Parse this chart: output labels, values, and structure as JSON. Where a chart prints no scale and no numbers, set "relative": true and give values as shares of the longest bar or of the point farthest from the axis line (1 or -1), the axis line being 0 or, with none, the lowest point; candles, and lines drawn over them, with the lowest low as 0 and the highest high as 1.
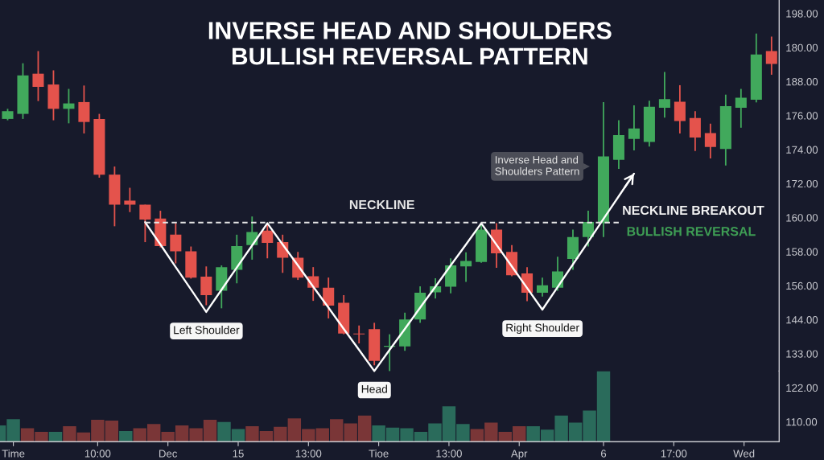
{
  "chart_data": [
    {
      "type": "candlestick",
      "title": "INVERSE HEAD AND SHOULDERS",
      "subtitle": "BULLISH REVERSAL PATTERN",
      "relative": true,
      "categories": [
        null,
        null,
        null,
        null,
        null,
        null,
        null,
        null,
        null,
        null,
        null,
        null,
        null,
        null,
        null,
        null,
        null,
        null,
        null,
        null,
        null,
        null,
        null,
        null,
        null,
        null,
        null,
        null,
        null,
        null,
        null,
        null,
        null,
        null,
        null,
        null,
        null,
        null,
        null,
        null,
        null,
        null,
        null,
        null,
        null,
        null,
        null,
        null,
        null,
        null,
        null
      ],
      "ohlc": [
        [
          0.747,
          0.777,
          0.743,
          0.77
        ],
        [
          0.762,
          0.912,
          0.747,
          0.876
        ],
        [
          0.881,
          0.948,
          0.8,
          0.842
        ],
        [
          0.849,
          0.891,
          0.743,
          0.777
        ],
        [
          0.777,
          0.836,
          0.734,
          0.793
        ],
        [
          0.797,
          0.846,
          0.704,
          0.738
        ],
        [
          0.747,
          0.762,
          0.573,
          0.582
        ],
        [
          0.582,
          0.606,
          0.429,
          0.493
        ],
        [
          0.505,
          0.543,
          0.471,
          0.493
        ],
        [
          0.493,
          0.493,
          0.382,
          0.449
        ],
        [
          0.452,
          0.475,
          0.366,
          0.37
        ],
        [
          0.404,
          0.438,
          0.319,
          0.355
        ],
        [
          0.355,
          0.369,
          0.274,
          0.277
        ],
        [
          0.28,
          0.31,
          0.195,
          0.225
        ],
        [
          0.238,
          0.313,
          0.186,
          0.308
        ],
        [
          0.3,
          0.404,
          0.26,
          0.37
        ],
        [
          0.373,
          0.458,
          0.33,
          0.412
        ],
        [
          0.416,
          0.438,
          0.334,
          0.38
        ],
        [
          0.382,
          0.404,
          0.291,
          0.336
        ],
        [
          0.336,
          0.353,
          0.27,
          0.277
        ],
        [
          0.281,
          0.308,
          0.208,
          0.247
        ],
        [
          0.247,
          0.277,
          0.156,
          0.194
        ],
        [
          0.202,
          0.225,
          0.109,
          0.111
        ],
        [
          0.111,
          0.135,
          0.082,
          0.109
        ],
        [
          0.124,
          0.143,
          0.017,
          0.03
        ],
        [
          0.072,
          0.109,
          0.0,
          0.075
        ],
        [
          0.073,
          0.173,
          0.06,
          0.153
        ],
        [
          0.153,
          0.251,
          0.143,
          0.232
        ],
        [
          0.233,
          0.275,
          0.215,
          0.251
        ],
        [
          0.25,
          0.334,
          0.23,
          0.313
        ],
        [
          0.31,
          0.352,
          0.264,
          0.326
        ],
        [
          0.323,
          0.438,
          0.321,
          0.419
        ],
        [
          0.419,
          0.438,
          0.306,
          0.349
        ],
        [
          0.353,
          0.373,
          0.281,
          0.284
        ],
        [
          0.289,
          0.308,
          0.207,
          0.232
        ],
        [
          0.232,
          0.277,
          0.221,
          0.254
        ],
        [
          0.247,
          0.339,
          0.238,
          0.295
        ],
        [
          0.332,
          0.419,
          0.3,
          0.397
        ],
        [
          0.397,
          0.475,
          0.369,
          0.442
        ],
        [
          0.438,
          0.797,
          0.397,
          0.636
        ],
        [
          0.626,
          0.743,
          0.599,
          0.699
        ],
        [
          0.688,
          0.787,
          0.654,
          0.719
        ],
        [
          0.679,
          0.801,
          0.665,
          0.783
        ],
        [
          0.78,
          0.886,
          0.751,
          0.806
        ],
        [
          0.798,
          0.847,
          0.704,
          0.741
        ],
        [
          0.75,
          0.77,
          0.652,
          0.692
        ],
        [
          0.705,
          0.733,
          0.63,
          0.664
        ],
        [
          0.658,
          0.819,
          0.609,
          0.785
        ],
        [
          0.78,
          0.836,
          0.721,
          0.81
        ],
        [
          0.804,
          1.0,
          0.796,
          0.938
        ],
        [
          0.948,
          0.991,
          0.878,
          0.91
        ]
      ],
      "colors": [
        "#41a95c",
        "#41a95c",
        "#e4534c",
        "#e4534c",
        "#41a95c",
        "#e4534c",
        "#e4534c",
        "#e4534c",
        "#e4534c",
        "#e4534c",
        "#e4534c",
        "#e4534c",
        "#e4534c",
        "#e4534c",
        "#41a95c",
        "#41a95c",
        "#41a95c",
        "#e4534c",
        "#e4534c",
        "#e4534c",
        "#e4534c",
        "#e4534c",
        "#e4534c",
        "#e4534c",
        "#e4534c",
        "#41a95c",
        "#41a95c",
        "#41a95c",
        "#41a95c",
        "#41a95c",
        "#41a95c",
        "#41a95c",
        "#e4534c",
        "#e4534c",
        "#e4534c",
        "#41a95c",
        "#41a95c",
        "#41a95c",
        "#41a95c",
        "#41a95c",
        "#41a95c",
        "#41a95c",
        "#41a95c",
        "#41a95c",
        "#e4534c",
        "#e4534c",
        "#e4534c",
        "#41a95c",
        "#41a95c",
        "#41a95c",
        "#e4534c"
      ],
      "series": [
        {
          "type": "line",
          "values": [
            null,
            null,
            null,
            null,
            null,
            null,
            null,
            null,
            null,
            0.441,
            0.375,
            0.308,
            0.242,
            0.175,
            0.241,
            0.307,
            0.372,
            0.438,
            0.375,
            0.313,
            0.25,
            0.188,
            0.125,
            0.063,
            0.0,
            0.063,
            0.125,
            0.188,
            0.25,
            0.313,
            0.375,
            0.438,
            0.374,
            0.31,
            0.246,
            0.182,
            0.249,
            0.316,
            0.383,
            0.451,
            0.518,
            0.585,
            null,
            null,
            null,
            null,
            null,
            null,
            null,
            null,
            null
          ],
          "color": "#ffffff",
          "line_style": "solid"
        },
        {
          "type": "line",
          "name": "NECKLINE",
          "values": [
            null,
            null,
            null,
            null,
            null,
            null,
            null,
            null,
            null,
            0.44,
            0.44,
            0.44,
            0.44,
            0.44,
            0.44,
            0.44,
            0.44,
            0.44,
            0.44,
            0.44,
            0.44,
            0.44,
            0.44,
            0.44,
            0.44,
            0.44,
            0.44,
            0.44,
            0.44,
            0.44,
            0.44,
            0.44,
            0.44,
            0.44,
            0.44,
            0.44,
            0.44,
            0.44,
            0.44,
            0.44,
            0.44,
            null,
            null,
            null,
            null,
            null,
            null,
            null,
            null,
            null,
            null
          ],
          "color": "#e6e6e6",
          "line_style": "dashed"
        }
      ],
      "annotations": [
        {
          "text": "Left Shoulder",
          "y": 0.175
        },
        {
          "text": "Head",
          "y": 0.0
        },
        {
          "text": "Right Shoulder",
          "y": 0.182
        },
        "Inverse Head and\nShoulders Pattern",
        "NECKLINE BREAKOUT",
        "BULLISH REVERSAL",
        "198.00",
        "180.00",
        "188.00",
        "176.00",
        "174.00",
        "172.00",
        "160.00",
        "158.00",
        "156.00",
        "144.00",
        "133.00",
        "122.00",
        "110.00"
      ]
    },
    {
      "type": "bar",
      "relative": true,
      "tick_labels": "x",
      "categories": [
        null,
        "Time",
        null,
        null,
        null,
        null,
        null,
        "10:00",
        null,
        null,
        null,
        null,
        "Dec",
        null,
        null,
        null,
        null,
        "15",
        null,
        null,
        null,
        null,
        "13:00",
        null,
        null,
        null,
        null,
        "Tioe",
        null,
        null,
        null,
        null,
        "13:00",
        null,
        null,
        null,
        null,
        "Apr",
        null,
        null,
        null,
        null,
        null,
        "6",
        null,
        null,
        null,
        null,
        "17:00",
        null,
        null,
        null,
        null,
        "Wed",
        null,
        null
      ],
      "values": [
        0.23,
        0.32,
        0.19,
        0.14,
        0.14,
        0.22,
        0.13,
        0.31,
        0.3,
        0.15,
        0.19,
        0.25,
        0.14,
        0.23,
        0.19,
        0.31,
        0.28,
        0.18,
        0.22,
        0.15,
        0.21,
        0.33,
        0.18,
        0.19,
        0.32,
        0.26,
        0.37,
        0.23,
        0.2,
        0.19,
        0.14,
        0.26,
        0.5,
        0.25,
        0.18,
        0.27,
        0.14,
        0.22,
        0.22,
        0.17,
        0.37,
        0.27,
        0.44,
        1,
        null,
        null,
        null,
        null,
        null,
        null,
        null,
        null,
        null,
        null,
        null,
        null
      ],
      "colors": [
        "#2a6b5b",
        "#2a6b5b",
        "#7a3637",
        "#7a3637",
        "#2a6b5b",
        "#7a3637",
        "#7a3637",
        "#7a3637",
        "#7a3637",
        "#2a6b5b",
        "#7a3637",
        "#7a3637",
        "#7a3637",
        "#7a3637",
        "#7a3637",
        "#7a3637",
        "#2a6b5b",
        "#2a6b5b",
        "#7a3637",
        "#7a3637",
        "#7a3637",
        "#7a3637",
        "#7a3637",
        "#7a3637",
        "#7a3637",
        "#7a3637",
        "#7a3637",
        "#2a6b5b",
        "#2a6b5b",
        "#2a6b5b",
        "#2a6b5b",
        "#2a6b5b",
        "#2a6b5b",
        "#2a6b5b",
        "#7a3637",
        "#7a3637",
        "#7a3637",
        "#7a3637",
        "#2a6b5b",
        "#2a6b5b",
        "#2a6b5b",
        "#2a6b5b",
        "#2a6b5b",
        "#2a6b5b",
        null,
        null,
        null,
        null,
        null,
        null,
        null,
        null,
        null,
        null,
        null,
        null
      ]
    }
  ]
}
